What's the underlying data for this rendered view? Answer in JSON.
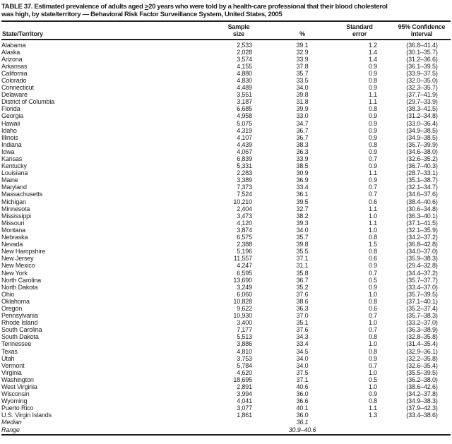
{
  "title": {
    "line1_pre": "TABLE 37. Estimated prevalence of adults aged ",
    "line1_geq": ">",
    "line1_post": "20 years who were told by a health-care professional that their blood cholesterol",
    "line2": "was high, by state/territory — Behavioral Risk Factor Surveillance System, United States, 2005"
  },
  "columns": {
    "state": "State/Territory",
    "sample_l1": "Sample",
    "sample_l2": "size",
    "percent": "%",
    "se_l1": "Standard",
    "se_l2": "error",
    "ci_l1": "95% Confidence",
    "ci_l2": "interval"
  },
  "table": {
    "rows": [
      {
        "state": "Alabama",
        "sample": "2,533",
        "pct": "39.1",
        "se": "1.2",
        "ci": "(36.8–41.4)",
        "italic": false
      },
      {
        "state": "Alaska",
        "sample": "2,028",
        "pct": "32.9",
        "se": "1.4",
        "ci": "(30.1–35.7)",
        "italic": false
      },
      {
        "state": "Arizona",
        "sample": "3,574",
        "pct": "33.9",
        "se": "1.4",
        "ci": "(31.2–36.6)",
        "italic": false
      },
      {
        "state": "Arkansas",
        "sample": "4,155",
        "pct": "37.8",
        "se": "0.9",
        "ci": "(36.1–39.5)",
        "italic": false
      },
      {
        "state": "California",
        "sample": "4,880",
        "pct": "35.7",
        "se": "0.9",
        "ci": "(33.9–37.5)",
        "italic": false
      },
      {
        "state": "Colorado",
        "sample": "4,830",
        "pct": "33.5",
        "se": "0.8",
        "ci": "(32.0–35.0)",
        "italic": false
      },
      {
        "state": "Connecticut",
        "sample": "4,489",
        "pct": "34.0",
        "se": "0.9",
        "ci": "(32.3–35.7)",
        "italic": false
      },
      {
        "state": "Delaware",
        "sample": "3,551",
        "pct": "39.8",
        "se": "1.1",
        "ci": "(37.7–41.9)",
        "italic": false
      },
      {
        "state": "District of Columbia",
        "sample": "3,187",
        "pct": "31.8",
        "se": "1.1",
        "ci": "(29.7–33.9)",
        "italic": false
      },
      {
        "state": "Florida",
        "sample": "6,685",
        "pct": "39.9",
        "se": "0.8",
        "ci": "(38.3–41.5)",
        "italic": false
      },
      {
        "state": "Georgia",
        "sample": "4,958",
        "pct": "33.0",
        "se": "0.9",
        "ci": "(31.2–34.8)",
        "italic": false
      },
      {
        "state": "Hawaii",
        "sample": "5,075",
        "pct": "34.7",
        "se": "0.9",
        "ci": "(33.0–36.4)",
        "italic": false
      },
      {
        "state": "Idaho",
        "sample": "4,319",
        "pct": "36.7",
        "se": "0.9",
        "ci": "(34.9–38.5)",
        "italic": false
      },
      {
        "state": "Illinois",
        "sample": "4,107",
        "pct": "36.7",
        "se": "0.9",
        "ci": "(34.9–38.5)",
        "italic": false
      },
      {
        "state": "Indiana",
        "sample": "4,439",
        "pct": "38.3",
        "se": "0.8",
        "ci": "(36.7–39.9)",
        "italic": false
      },
      {
        "state": "Iowa",
        "sample": "4,067",
        "pct": "36.3",
        "se": "0.9",
        "ci": "(34.6–38.0)",
        "italic": false
      },
      {
        "state": "Kansas",
        "sample": "6,839",
        "pct": "33.9",
        "se": "0.7",
        "ci": "(32.6–35.2)",
        "italic": false
      },
      {
        "state": "Kentucky",
        "sample": "5,331",
        "pct": "38.5",
        "se": "0.9",
        "ci": "(36.7–40.3)",
        "italic": false
      },
      {
        "state": "Louisiana",
        "sample": "2,283",
        "pct": "30.9",
        "se": "1.1",
        "ci": "(28.7–33.1)",
        "italic": false
      },
      {
        "state": "Maine",
        "sample": "3,389",
        "pct": "36.9",
        "se": "0.9",
        "ci": "(35.1–38.7)",
        "italic": false
      },
      {
        "state": "Maryland",
        "sample": "7,373",
        "pct": "33.4",
        "se": "0.7",
        "ci": "(32.1–34.7)",
        "italic": false
      },
      {
        "state": "Massachusetts",
        "sample": "7,524",
        "pct": "36.1",
        "se": "0.7",
        "ci": "(34.6–37.6)",
        "italic": false
      },
      {
        "state": "Michigan",
        "sample": "10,210",
        "pct": "39.5",
        "se": "0.6",
        "ci": "(38.4–40.6)",
        "italic": false
      },
      {
        "state": "Minnesota",
        "sample": "2,404",
        "pct": "32.7",
        "se": "1.1",
        "ci": "(30.6–34.8)",
        "italic": false
      },
      {
        "state": "Mississippi",
        "sample": "3,473",
        "pct": "38.2",
        "se": "1.0",
        "ci": "(36.3–40.1)",
        "italic": false
      },
      {
        "state": "Missouri",
        "sample": "4,120",
        "pct": "39.3",
        "se": "1.1",
        "ci": "(37.1–41.5)",
        "italic": false
      },
      {
        "state": "Montana",
        "sample": "3,874",
        "pct": "34.0",
        "se": "1.0",
        "ci": "(32.1–35.9)",
        "italic": false
      },
      {
        "state": "Nebraska",
        "sample": "6,575",
        "pct": "35.7",
        "se": "0.8",
        "ci": "(34.2–37.2)",
        "italic": false
      },
      {
        "state": "Nevada",
        "sample": "2,388",
        "pct": "39.8",
        "se": "1.5",
        "ci": "(36.8–42.8)",
        "italic": false
      },
      {
        "state": "New Hampshire",
        "sample": "5,196",
        "pct": "35.5",
        "se": "0.8",
        "ci": "(34.0–37.0)",
        "italic": false
      },
      {
        "state": "New Jersey",
        "sample": "11,557",
        "pct": "37.1",
        "se": "0.6",
        "ci": "(35.9–38.3)",
        "italic": false
      },
      {
        "state": "New Mexico",
        "sample": "4,247",
        "pct": "31.1",
        "se": "0.9",
        "ci": "(29.4–32.8)",
        "italic": false
      },
      {
        "state": "New York",
        "sample": "6,595",
        "pct": "35.8",
        "se": "0.7",
        "ci": "(34.4–37.2)",
        "italic": false
      },
      {
        "state": "North Carolina",
        "sample": "13,690",
        "pct": "36.7",
        "se": "0.5",
        "ci": "(35.7–37.7)",
        "italic": false
      },
      {
        "state": "North Dakota",
        "sample": "3,249",
        "pct": "35.2",
        "se": "0.9",
        "ci": "(33.4–37.0)",
        "italic": false
      },
      {
        "state": "Ohio",
        "sample": "6,060",
        "pct": "37.6",
        "se": "1.0",
        "ci": "(35.7–39.5)",
        "italic": false
      },
      {
        "state": "Oklahoma",
        "sample": "10,828",
        "pct": "38.6",
        "se": "0.8",
        "ci": "(37.1–40.1)",
        "italic": false
      },
      {
        "state": "Oregon",
        "sample": "9,622",
        "pct": "36.3",
        "se": "0.6",
        "ci": "(35.2–37.4)",
        "italic": false
      },
      {
        "state": "Pennsylvania",
        "sample": "10,930",
        "pct": "37.0",
        "se": "0.7",
        "ci": "(35.7–38.3)",
        "italic": false
      },
      {
        "state": "Rhode Island",
        "sample": "3,400",
        "pct": "35.1",
        "se": "1.0",
        "ci": "(33.2–37.0)",
        "italic": false
      },
      {
        "state": "South Carolina",
        "sample": "7,177",
        "pct": "37.6",
        "se": "0.7",
        "ci": "(36.3–38.9)",
        "italic": false
      },
      {
        "state": "South Dakota",
        "sample": "5,513",
        "pct": "34.3",
        "se": "0.8",
        "ci": "(32.8–35.8)",
        "italic": false
      },
      {
        "state": "Tennessee",
        "sample": "3,886",
        "pct": "33.4",
        "se": "1.0",
        "ci": "(31.4–35.4)",
        "italic": false
      },
      {
        "state": "Texas",
        "sample": "4,810",
        "pct": "34.5",
        "se": "0.8",
        "ci": "(32.9–36.1)",
        "italic": false
      },
      {
        "state": "Utah",
        "sample": "3,753",
        "pct": "34.0",
        "se": "0.9",
        "ci": "(32.2–35.8)",
        "italic": false
      },
      {
        "state": "Vermont",
        "sample": "5,784",
        "pct": "34.0",
        "se": "0.7",
        "ci": "(32.6–35.4)",
        "italic": false
      },
      {
        "state": "Virginia",
        "sample": "4,620",
        "pct": "37.5",
        "se": "1.0",
        "ci": "(35.5–39.5)",
        "italic": false
      },
      {
        "state": "Washington",
        "sample": "18,695",
        "pct": "37.1",
        "se": "0.5",
        "ci": "(36.2–38.0)",
        "italic": false
      },
      {
        "state": "West Virginia",
        "sample": "2,891",
        "pct": "40.6",
        "se": "1.0",
        "ci": "(38.6–42.6)",
        "italic": false
      },
      {
        "state": "Wisconsin",
        "sample": "3,994",
        "pct": "36.0",
        "se": "0.9",
        "ci": "(34.2–37.8)",
        "italic": false
      },
      {
        "state": "Wyoming",
        "sample": "4,041",
        "pct": "36.6",
        "se": "0.8",
        "ci": "(34.9–38.3)",
        "italic": false
      },
      {
        "state": "Puerto Rico",
        "sample": "3,077",
        "pct": "40.1",
        "se": "1.1",
        "ci": "(37.9–42.3)",
        "italic": false
      },
      {
        "state": "U.S. Virgin Islands",
        "sample": "1,861",
        "pct": "36.0",
        "se": "1.3",
        "ci": "(33.4–38.6)",
        "italic": false
      },
      {
        "state": "Median",
        "sample": "",
        "pct": "36.1",
        "se": "",
        "ci": "",
        "italic": true
      },
      {
        "state": "Range",
        "sample": "",
        "pct": "30.9–40.6",
        "se": "",
        "ci": "",
        "italic": true
      }
    ]
  }
}
